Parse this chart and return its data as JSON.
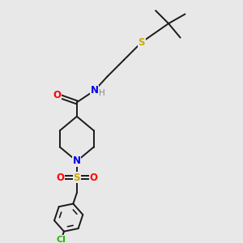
{
  "background_color": "#e8e8e8",
  "bond_color": "#1a1a1a",
  "atom_colors": {
    "N": "#0000ee",
    "O": "#ff0000",
    "S": "#ccaa00",
    "Cl": "#22bb00",
    "H": "#888888"
  },
  "figsize": [
    3.0,
    3.0
  ],
  "dpi": 100
}
